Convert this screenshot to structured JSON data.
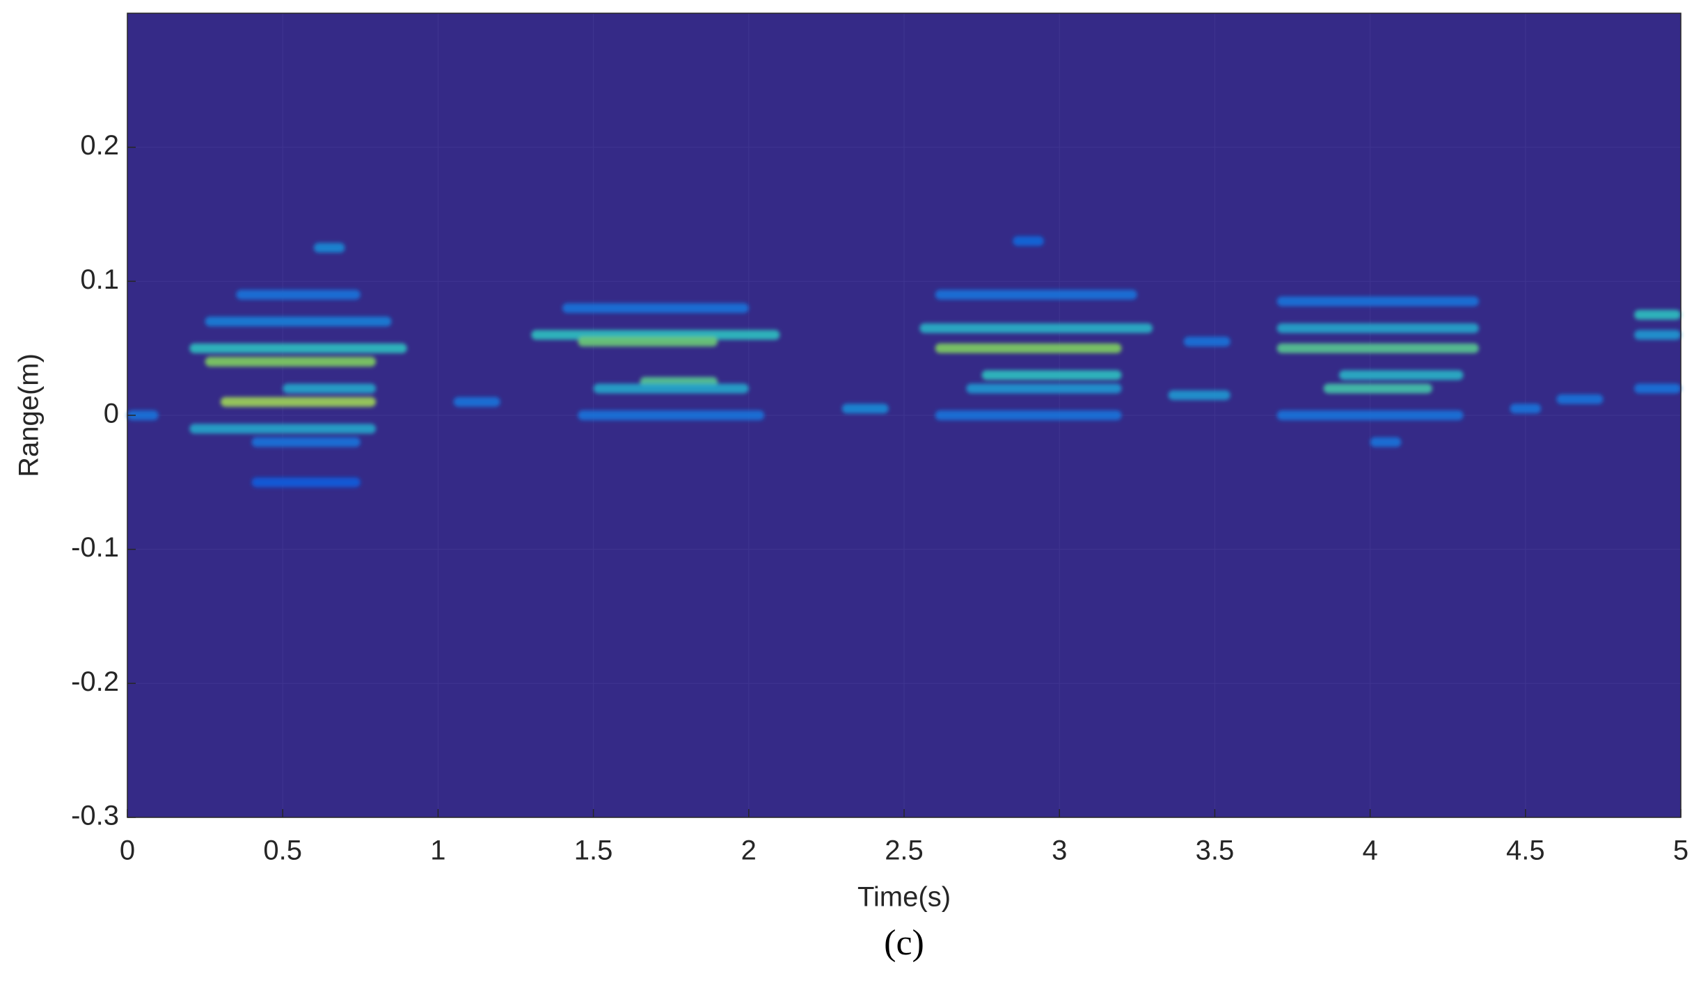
{
  "chart_data": {
    "type": "heatmap",
    "xlabel": "Time(s)",
    "ylabel": "Range(m)",
    "caption": "(c)",
    "xlim": [
      0,
      5
    ],
    "xticks": [
      0,
      0.5,
      1,
      1.5,
      2,
      2.5,
      3,
      3.5,
      4,
      4.5,
      5
    ],
    "ylim": [
      -0.3,
      0.3
    ],
    "yticks": [
      -0.3,
      -0.2,
      -0.1,
      0,
      0.1,
      0.2
    ],
    "grid": true,
    "background": "#352a87",
    "colormap": [
      "#352a87",
      "#0f5cdd",
      "#1a8bd6",
      "#2dc0c0",
      "#7fcf5f",
      "#f9e33a"
    ],
    "cells": [
      {
        "x": [
          0.0,
          0.1
        ],
        "y": 0.0,
        "value": 0.3
      },
      {
        "x": [
          0.2,
          0.9
        ],
        "y": 0.05,
        "value": 0.6
      },
      {
        "x": [
          0.25,
          0.8
        ],
        "y": 0.04,
        "value": 0.8
      },
      {
        "x": [
          0.3,
          0.8
        ],
        "y": 0.01,
        "value": 0.85
      },
      {
        "x": [
          0.2,
          0.8
        ],
        "y": -0.01,
        "value": 0.5
      },
      {
        "x": [
          0.5,
          0.8
        ],
        "y": 0.02,
        "value": 0.5
      },
      {
        "x": [
          0.25,
          0.85
        ],
        "y": 0.07,
        "value": 0.35
      },
      {
        "x": [
          0.35,
          0.75
        ],
        "y": 0.09,
        "value": 0.3
      },
      {
        "x": [
          0.6,
          0.7
        ],
        "y": 0.125,
        "value": 0.4
      },
      {
        "x": [
          0.4,
          0.75
        ],
        "y": -0.02,
        "value": 0.3
      },
      {
        "x": [
          0.4,
          0.75
        ],
        "y": -0.05,
        "value": 0.2
      },
      {
        "x": [
          1.05,
          1.2
        ],
        "y": 0.01,
        "value": 0.3
      },
      {
        "x": [
          1.3,
          2.1
        ],
        "y": 0.06,
        "value": 0.6
      },
      {
        "x": [
          1.45,
          1.9
        ],
        "y": 0.055,
        "value": 0.75
      },
      {
        "x": [
          1.65,
          1.9
        ],
        "y": 0.025,
        "value": 0.7
      },
      {
        "x": [
          1.5,
          2.0
        ],
        "y": 0.02,
        "value": 0.5
      },
      {
        "x": [
          1.4,
          2.0
        ],
        "y": 0.08,
        "value": 0.3
      },
      {
        "x": [
          1.45,
          2.05
        ],
        "y": 0.0,
        "value": 0.3
      },
      {
        "x": [
          2.3,
          2.45
        ],
        "y": 0.005,
        "value": 0.4
      },
      {
        "x": [
          2.55,
          3.3
        ],
        "y": 0.065,
        "value": 0.55
      },
      {
        "x": [
          2.6,
          3.2
        ],
        "y": 0.05,
        "value": 0.8
      },
      {
        "x": [
          2.75,
          3.2
        ],
        "y": 0.03,
        "value": 0.6
      },
      {
        "x": [
          2.7,
          3.2
        ],
        "y": 0.02,
        "value": 0.45
      },
      {
        "x": [
          2.6,
          3.25
        ],
        "y": 0.09,
        "value": 0.3
      },
      {
        "x": [
          2.6,
          3.2
        ],
        "y": 0.0,
        "value": 0.3
      },
      {
        "x": [
          2.85,
          2.95
        ],
        "y": 0.13,
        "value": 0.25
      },
      {
        "x": [
          3.35,
          3.55
        ],
        "y": 0.015,
        "value": 0.45
      },
      {
        "x": [
          3.4,
          3.55
        ],
        "y": 0.055,
        "value": 0.3
      },
      {
        "x": [
          3.7,
          4.35
        ],
        "y": 0.065,
        "value": 0.5
      },
      {
        "x": [
          3.7,
          4.35
        ],
        "y": 0.05,
        "value": 0.7
      },
      {
        "x": [
          3.9,
          4.3
        ],
        "y": 0.03,
        "value": 0.55
      },
      {
        "x": [
          3.85,
          4.2
        ],
        "y": 0.02,
        "value": 0.65
      },
      {
        "x": [
          3.7,
          4.35
        ],
        "y": 0.085,
        "value": 0.3
      },
      {
        "x": [
          3.7,
          4.3
        ],
        "y": 0.0,
        "value": 0.3
      },
      {
        "x": [
          4.0,
          4.1
        ],
        "y": -0.02,
        "value": 0.3
      },
      {
        "x": [
          4.45,
          4.55
        ],
        "y": 0.005,
        "value": 0.3
      },
      {
        "x": [
          4.6,
          4.75
        ],
        "y": 0.012,
        "value": 0.3
      },
      {
        "x": [
          4.85,
          5.0
        ],
        "y": 0.075,
        "value": 0.6
      },
      {
        "x": [
          4.85,
          5.0
        ],
        "y": 0.06,
        "value": 0.45
      },
      {
        "x": [
          4.85,
          5.0
        ],
        "y": 0.02,
        "value": 0.3
      }
    ]
  }
}
